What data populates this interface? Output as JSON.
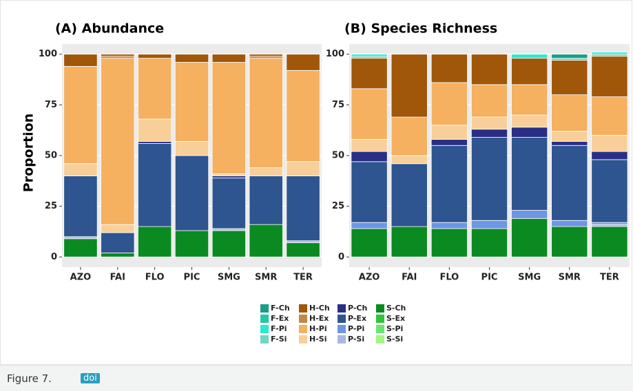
{
  "chart_data": [
    {
      "type": "stacked-bar",
      "title": "(A) Abundance",
      "y_label": "Proportion",
      "categories": [
        "AZO",
        "FAI",
        "FLO",
        "PIC",
        "SMG",
        "SMR",
        "TER"
      ],
      "ylim": [
        -5,
        105
      ],
      "yticks": [
        0,
        25,
        50,
        75,
        100
      ],
      "grid": true,
      "series": [
        {
          "name": "F-Ch",
          "color": "#1a9e8a",
          "values": [
            0,
            0,
            0,
            0,
            0,
            0,
            0
          ]
        },
        {
          "name": "F-Ex",
          "color": "#26c6a6",
          "values": [
            0,
            0,
            0,
            0,
            0,
            0,
            0
          ]
        },
        {
          "name": "F-Pi",
          "color": "#2de8d0",
          "values": [
            0,
            0,
            0,
            0,
            0,
            0,
            0
          ]
        },
        {
          "name": "F-Si",
          "color": "#6fd6c0",
          "values": [
            0,
            0,
            0,
            0,
            0,
            0,
            0
          ]
        },
        {
          "name": "H-Ch",
          "color": "#a0570a",
          "values": [
            6,
            1,
            2,
            4,
            4,
            1,
            8
          ]
        },
        {
          "name": "H-Ex",
          "color": "#c0894a",
          "values": [
            0,
            1,
            0,
            0,
            0,
            1,
            0
          ]
        },
        {
          "name": "H-Pi",
          "color": "#f5b060",
          "values": [
            48,
            82,
            30,
            39,
            55,
            54,
            45
          ]
        },
        {
          "name": "H-Si",
          "color": "#f8cf98",
          "values": [
            6,
            4,
            11,
            7,
            1,
            4,
            7
          ]
        },
        {
          "name": "P-Ch",
          "color": "#2a2f85",
          "values": [
            0,
            0,
            1,
            0,
            1,
            0,
            0
          ]
        },
        {
          "name": "P-Ex",
          "color": "#2e5590",
          "values": [
            30,
            10,
            41,
            37,
            25,
            24,
            32
          ]
        },
        {
          "name": "P-Pi",
          "color": "#6f95e6",
          "values": [
            0,
            0,
            0,
            0,
            0,
            0,
            0
          ]
        },
        {
          "name": "P-Si",
          "color": "#aab8e0",
          "values": [
            1,
            0,
            0,
            0,
            1,
            0,
            1
          ]
        },
        {
          "name": "S-Ch",
          "color": "#0b8a22",
          "values": [
            9,
            2,
            15,
            13,
            13,
            16,
            7
          ]
        },
        {
          "name": "S-Ex",
          "color": "#2fc43a",
          "values": [
            0,
            0,
            0,
            0,
            0,
            0,
            0
          ]
        },
        {
          "name": "S-Pi",
          "color": "#66e870",
          "values": [
            0,
            0,
            0,
            0,
            0,
            0,
            0
          ]
        },
        {
          "name": "S-Si",
          "color": "#a2f57f",
          "values": [
            0,
            0,
            0,
            0,
            0,
            0,
            0
          ]
        }
      ]
    },
    {
      "type": "stacked-bar",
      "title": "(B) Species Richness",
      "categories": [
        "AZO",
        "FAI",
        "FLO",
        "PIC",
        "SMG",
        "SMR",
        "TER"
      ],
      "ylim": [
        -5,
        105
      ],
      "yticks": [
        0,
        25,
        50,
        75,
        100
      ],
      "grid": true,
      "series": [
        {
          "name": "F-Ch",
          "color": "#1a9e8a",
          "values": [
            0,
            0,
            0,
            0,
            0,
            2,
            0
          ]
        },
        {
          "name": "F-Ex",
          "color": "#26c6a6",
          "values": [
            0,
            0,
            0,
            0,
            0,
            0,
            0
          ]
        },
        {
          "name": "F-Pi",
          "color": "#2de8d0",
          "values": [
            1,
            0,
            0,
            0,
            2,
            0,
            1
          ]
        },
        {
          "name": "F-Si",
          "color": "#6fd6c0",
          "values": [
            1,
            0,
            0,
            0,
            0,
            1,
            1
          ]
        },
        {
          "name": "H-Ch",
          "color": "#a0570a",
          "values": [
            15,
            31,
            14,
            15,
            13,
            17,
            20
          ]
        },
        {
          "name": "H-Ex",
          "color": "#c0894a",
          "values": [
            0,
            0,
            0,
            0,
            0,
            0,
            0
          ]
        },
        {
          "name": "H-Pi",
          "color": "#f5b060",
          "values": [
            25,
            19,
            21,
            16,
            15,
            18,
            19
          ]
        },
        {
          "name": "H-Si",
          "color": "#f8cf98",
          "values": [
            6,
            4,
            7,
            6,
            6,
            5,
            8
          ]
        },
        {
          "name": "P-Ch",
          "color": "#2a2f85",
          "values": [
            5,
            0,
            3,
            4,
            5,
            2,
            4
          ]
        },
        {
          "name": "P-Ex",
          "color": "#2e5590",
          "values": [
            30,
            31,
            38,
            41,
            36,
            37,
            31
          ]
        },
        {
          "name": "P-Pi",
          "color": "#6f95e6",
          "values": [
            3,
            0,
            3,
            4,
            4,
            3,
            1
          ]
        },
        {
          "name": "P-Si",
          "color": "#aab8e0",
          "values": [
            0,
            0,
            0,
            0,
            0,
            0,
            1
          ]
        },
        {
          "name": "S-Ch",
          "color": "#0b8a22",
          "values": [
            14,
            15,
            14,
            14,
            19,
            15,
            15
          ]
        },
        {
          "name": "S-Ex",
          "color": "#2fc43a",
          "values": [
            0,
            0,
            0,
            0,
            0,
            0,
            0
          ]
        },
        {
          "name": "S-Pi",
          "color": "#66e870",
          "values": [
            0,
            0,
            0,
            0,
            0,
            0,
            0
          ]
        },
        {
          "name": "S-Si",
          "color": "#a2f57f",
          "values": [
            0,
            0,
            0,
            0,
            0,
            0,
            0
          ]
        }
      ]
    }
  ],
  "caption": {
    "label": "Figure 7.",
    "link": "doi"
  }
}
